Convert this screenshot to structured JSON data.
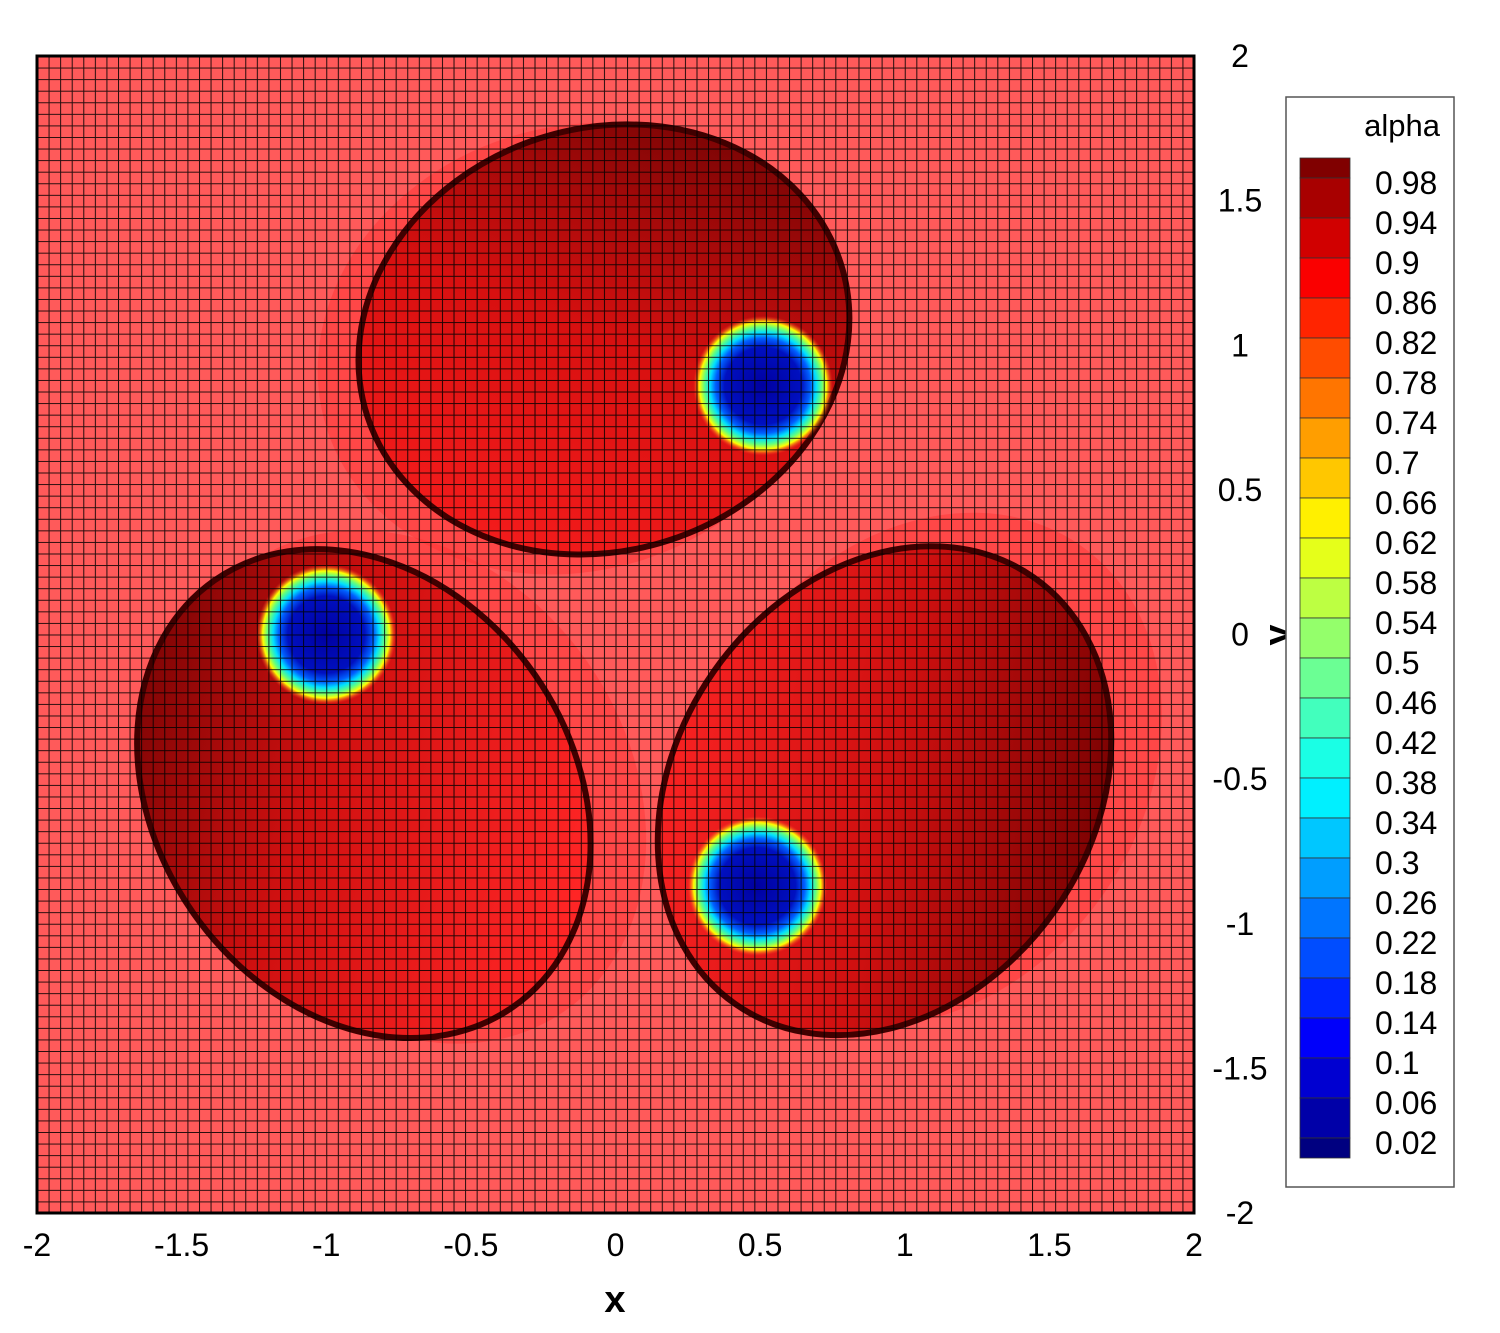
{
  "chart_data": {
    "type": "heatmap",
    "title": "",
    "xlabel": "x",
    "ylabel": "y",
    "xlim": [
      -2,
      2
    ],
    "ylim": [
      -2,
      2
    ],
    "xticks": [
      "-2",
      "-1.5",
      "-1",
      "-0.5",
      "0",
      "0.5",
      "1",
      "1.5",
      "2"
    ],
    "yticks": [
      "2",
      "1.5",
      "1",
      "0.5",
      "0",
      "-0.5",
      "-1",
      "-1.5",
      "-2"
    ],
    "xtick_values": [
      -2,
      -1.5,
      -1,
      -0.5,
      0,
      0.5,
      1,
      1.5,
      2
    ],
    "ytick_values": [
      2,
      1.5,
      1,
      0.5,
      0,
      -0.5,
      -1,
      -1.5,
      -2
    ],
    "mesh": {
      "cells_x": 100,
      "cells_y": 100,
      "shown": true
    },
    "background_value": 0.98,
    "features": [
      {
        "name": "bubble-top",
        "center": [
          -0.04,
          1.02
        ],
        "radii": [
          0.86,
          0.73
        ],
        "rotation_deg": -18,
        "core": [
          0.51,
          0.86
        ],
        "core_radius": 0.21,
        "core_value": 0.02
      },
      {
        "name": "bubble-lower-left",
        "center": [
          -0.87,
          -0.55
        ],
        "radii": [
          0.72,
          0.9
        ],
        "rotation_deg": -35,
        "core": [
          -1.0,
          0.0
        ],
        "core_radius": 0.21,
        "core_value": 0.02
      },
      {
        "name": "bubble-lower-right",
        "center": [
          0.93,
          -0.54
        ],
        "radii": [
          0.72,
          0.9
        ],
        "rotation_deg": 35,
        "core": [
          0.49,
          -0.87
        ],
        "core_radius": 0.21,
        "core_value": 0.02
      }
    ],
    "legend": {
      "title": "alpha",
      "placement": "right",
      "levels": [
        "0.98",
        "0.94",
        "0.9",
        "0.86",
        "0.82",
        "0.78",
        "0.74",
        "0.7",
        "0.66",
        "0.62",
        "0.58",
        "0.54",
        "0.5",
        "0.46",
        "0.42",
        "0.38",
        "0.34",
        "0.3",
        "0.26",
        "0.22",
        "0.18",
        "0.14",
        "0.1",
        "0.06",
        "0.02"
      ],
      "level_values": [
        0.98,
        0.94,
        0.9,
        0.86,
        0.82,
        0.78,
        0.74,
        0.7,
        0.66,
        0.62,
        0.58,
        0.54,
        0.5,
        0.46,
        0.42,
        0.38,
        0.34,
        0.3,
        0.26,
        0.22,
        0.18,
        0.14,
        0.1,
        0.06,
        0.02
      ],
      "colormap": "jet"
    }
  }
}
